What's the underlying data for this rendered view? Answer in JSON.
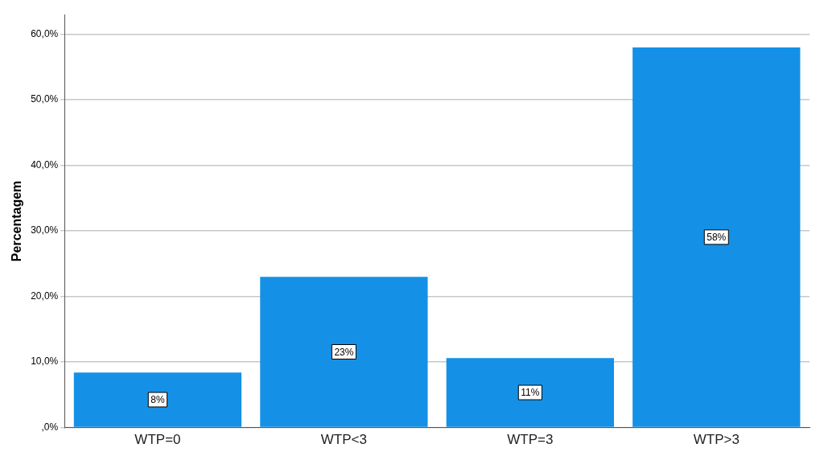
{
  "chart_data": {
    "type": "bar",
    "ylabel": "Percentagem",
    "categories": [
      "WTP=0",
      "WTP<3",
      "WTP=3",
      "WTP>3"
    ],
    "values": [
      8.4,
      23,
      10.6,
      58
    ],
    "value_labels": [
      "8%",
      "23%",
      "11%",
      "58%"
    ],
    "color": "#1491e6",
    "ylim": [
      0,
      63
    ],
    "yticks": [
      {
        "value": 0,
        "label": ",0%"
      },
      {
        "value": 10,
        "label": "10,0%"
      },
      {
        "value": 20,
        "label": "20,0%"
      },
      {
        "value": 30,
        "label": "30,0%"
      },
      {
        "value": 40,
        "label": "40,0%"
      },
      {
        "value": 50,
        "label": "50,0%"
      },
      {
        "value": 60,
        "label": "60,0%"
      }
    ],
    "grid": "y",
    "legend": false
  }
}
